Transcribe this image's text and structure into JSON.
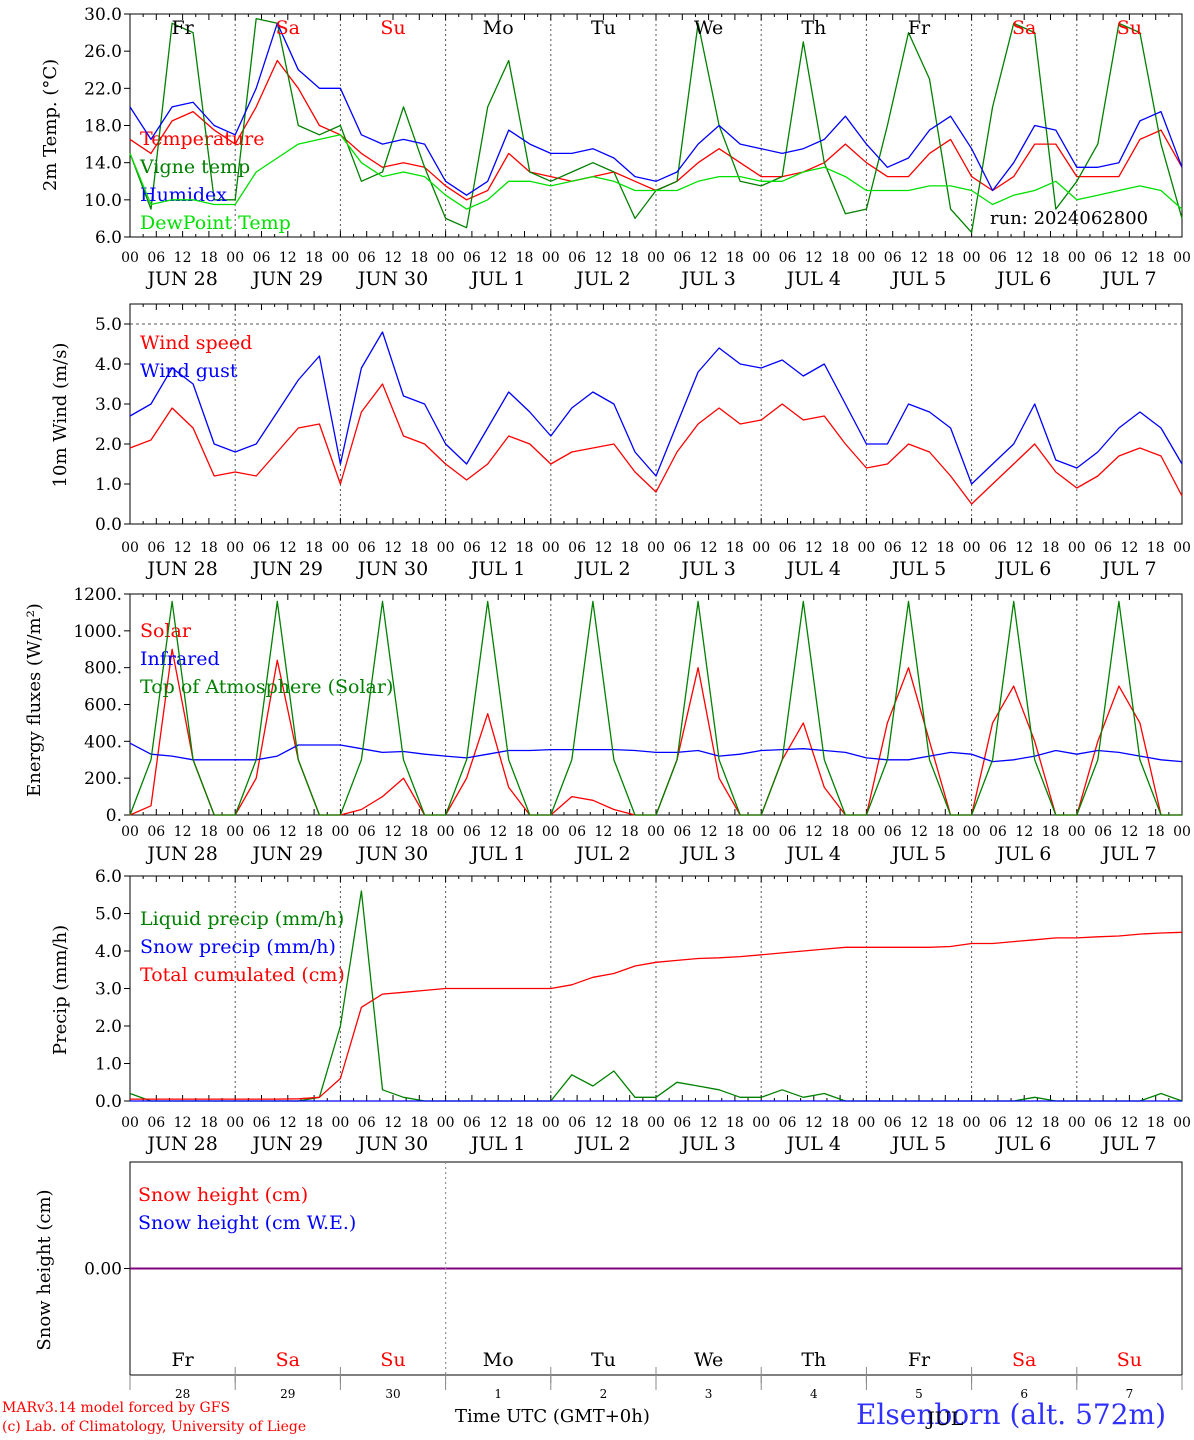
{
  "station": "Elsenborn (alt. 572m)",
  "run": "run: 2024062800",
  "credits": [
    "MARv3.14 model forced by GFS",
    "(c) Lab. of Climatology, University of Liege"
  ],
  "x_axis_title": "Time UTC (GMT+0h)",
  "hour_ticks": [
    "00",
    "06",
    "12",
    "18"
  ],
  "final_hour_tick": "00",
  "date_labels": [
    "JUN 28",
    "JUN 29",
    "JUN 30",
    "JUL  1",
    "JUL  2",
    "JUL  3",
    "JUL  4",
    "JUL  5",
    "JUL  6",
    "JUL  7"
  ],
  "weekdays": [
    {
      "d": "Fr",
      "c": "#000000"
    },
    {
      "d": "Sa",
      "c": "#ff0000"
    },
    {
      "d": "Su",
      "c": "#ff0000"
    },
    {
      "d": "Mo",
      "c": "#000000"
    },
    {
      "d": "Tu",
      "c": "#000000"
    },
    {
      "d": "We",
      "c": "#000000"
    },
    {
      "d": "Th",
      "c": "#000000"
    },
    {
      "d": "Fr",
      "c": "#000000"
    },
    {
      "d": "Sa",
      "c": "#ff0000"
    },
    {
      "d": "Su",
      "c": "#ff0000"
    }
  ],
  "bottom_day_numbers": [
    "28",
    "29",
    "30",
    "1",
    "2",
    "3",
    "4",
    "5",
    "6",
    "7"
  ],
  "bottom_month_label": "JUL",
  "colors": {
    "red": "#ff0000",
    "green": "#008000",
    "blue": "#0000ff",
    "lightgreen": "#00e000",
    "purple": "#800080",
    "frame": "#000000",
    "grid": "#555555"
  },
  "chart_data": [
    {
      "type": "line",
      "ylabel": "2m Temp. (°C)",
      "ylim": [
        6.0,
        30.0
      ],
      "yticks": [
        "6.0",
        "10.0",
        "14.0",
        "18.0",
        "22.0",
        "26.0",
        "30.0"
      ],
      "x_unit": "day index (0 = JUN 28 00 UTC), 6-hourly samples",
      "series": [
        {
          "name": "Temperature",
          "color": "#ff0000",
          "values": [
            16.5,
            15.0,
            18.5,
            19.5,
            17.5,
            16.0,
            20.0,
            25.0,
            22.0,
            18.0,
            17.0,
            15.0,
            13.5,
            14.0,
            13.5,
            11.5,
            10.0,
            11.0,
            15.0,
            13.0,
            12.5,
            12.0,
            12.5,
            13.0,
            12.0,
            11.0,
            12.0,
            14.0,
            15.5,
            14.0,
            12.5,
            12.5,
            13.0,
            14.0,
            16.0,
            14.0,
            12.5,
            12.5,
            15.0,
            16.5,
            12.5,
            11.0,
            12.5,
            16.0,
            16.0,
            12.5,
            12.5,
            12.5,
            16.5,
            17.5,
            13.5
          ]
        },
        {
          "name": "Vigne temp",
          "color": "#008000",
          "values": [
            15.0,
            9.0,
            29.0,
            28.0,
            10.0,
            10.0,
            29.5,
            29.0,
            18.0,
            17.0,
            18.0,
            12.0,
            13.0,
            20.0,
            13.5,
            8.0,
            7.0,
            20.0,
            25.0,
            13.0,
            12.0,
            13.0,
            14.0,
            13.0,
            8.0,
            11.0,
            12.0,
            29.0,
            18.0,
            12.0,
            11.5,
            12.5,
            27.0,
            14.0,
            8.5,
            9.0,
            18.0,
            28.0,
            23.0,
            9.0,
            6.5,
            20.0,
            29.0,
            28.0,
            9.0,
            12.0,
            16.0,
            29.0,
            28.0,
            16.0,
            8.0
          ]
        },
        {
          "name": "Humidex",
          "color": "#0000ff",
          "values": [
            20.0,
            16.5,
            20.0,
            20.5,
            18.0,
            17.0,
            22.0,
            29.0,
            24.0,
            22.0,
            22.0,
            17.0,
            16.0,
            16.5,
            16.0,
            12.0,
            10.5,
            12.0,
            17.5,
            16.0,
            15.0,
            15.0,
            15.5,
            14.5,
            12.5,
            12.0,
            13.0,
            16.0,
            18.0,
            16.0,
            15.5,
            15.0,
            15.5,
            16.5,
            19.0,
            16.0,
            13.5,
            14.5,
            17.5,
            19.0,
            15.5,
            11.0,
            14.0,
            18.0,
            17.5,
            13.5,
            13.5,
            14.0,
            18.5,
            19.5,
            13.5
          ]
        },
        {
          "name": "DewPoint Temp",
          "color": "#00e000",
          "values": [
            15.0,
            9.5,
            10.0,
            10.0,
            9.5,
            9.5,
            13.0,
            14.5,
            16.0,
            16.5,
            17.0,
            14.0,
            12.5,
            13.0,
            12.5,
            10.5,
            9.0,
            10.0,
            12.0,
            12.0,
            11.5,
            12.0,
            12.5,
            12.0,
            11.0,
            11.0,
            11.0,
            12.0,
            12.5,
            12.5,
            12.0,
            12.0,
            13.0,
            13.5,
            12.5,
            11.0,
            11.0,
            11.0,
            11.5,
            11.5,
            11.0,
            9.5,
            10.5,
            11.0,
            12.0,
            10.0,
            10.5,
            11.0,
            11.5,
            11.0,
            9.0
          ]
        }
      ]
    },
    {
      "type": "line",
      "ylabel": "10m Wind (m/s)",
      "ylim": [
        0.0,
        5.5
      ],
      "yticks": [
        "0.0",
        "1.0",
        "2.0",
        "3.0",
        "4.0",
        "5.0"
      ],
      "reference_line": 5.0,
      "series": [
        {
          "name": "Wind speed",
          "color": "#ff0000",
          "values": [
            1.9,
            2.1,
            2.9,
            2.4,
            1.2,
            1.3,
            1.2,
            1.8,
            2.4,
            2.5,
            1.0,
            2.8,
            3.5,
            2.2,
            2.0,
            1.5,
            1.1,
            1.5,
            2.2,
            2.0,
            1.5,
            1.8,
            1.9,
            2.0,
            1.3,
            0.8,
            1.8,
            2.5,
            2.9,
            2.5,
            2.6,
            3.0,
            2.6,
            2.7,
            2.0,
            1.4,
            1.5,
            2.0,
            1.8,
            1.2,
            0.5,
            1.0,
            1.5,
            2.0,
            1.3,
            0.9,
            1.2,
            1.7,
            1.9,
            1.7,
            0.7
          ]
        },
        {
          "name": "Wind gust",
          "color": "#0000ff",
          "values": [
            2.7,
            3.0,
            3.9,
            3.5,
            2.0,
            1.8,
            2.0,
            2.8,
            3.6,
            4.2,
            1.5,
            3.9,
            4.8,
            3.2,
            3.0,
            2.0,
            1.5,
            2.4,
            3.3,
            2.8,
            2.2,
            2.9,
            3.3,
            3.0,
            1.8,
            1.2,
            2.5,
            3.8,
            4.4,
            4.0,
            3.9,
            4.1,
            3.7,
            4.0,
            3.0,
            2.0,
            2.0,
            3.0,
            2.8,
            2.4,
            1.0,
            1.5,
            2.0,
            3.0,
            1.6,
            1.4,
            1.8,
            2.4,
            2.8,
            2.4,
            1.5
          ]
        }
      ]
    },
    {
      "type": "line",
      "ylabel": "Energy fluxes (W/m²)",
      "ylim": [
        0,
        1200
      ],
      "yticks": [
        "0.",
        "200.",
        "400.",
        "600.",
        "800.",
        "1000.",
        "1200."
      ],
      "series": [
        {
          "name": "Solar",
          "color": "#ff0000",
          "values": [
            0,
            50,
            900,
            300,
            0,
            0,
            200,
            840,
            300,
            0,
            0,
            30,
            100,
            200,
            0,
            0,
            200,
            550,
            150,
            0,
            0,
            100,
            80,
            30,
            0,
            0,
            300,
            800,
            200,
            0,
            0,
            300,
            500,
            150,
            0,
            0,
            500,
            800,
            400,
            0,
            0,
            500,
            700,
            400,
            0,
            0,
            400,
            700,
            500,
            0,
            0
          ]
        },
        {
          "name": "Infrared",
          "color": "#0000ff",
          "values": [
            390,
            330,
            320,
            300,
            300,
            300,
            300,
            320,
            380,
            380,
            380,
            360,
            340,
            345,
            330,
            320,
            310,
            330,
            350,
            350,
            355,
            355,
            355,
            355,
            350,
            340,
            340,
            350,
            320,
            330,
            350,
            355,
            360,
            350,
            340,
            310,
            300,
            300,
            320,
            340,
            330,
            290,
            300,
            320,
            350,
            330,
            350,
            340,
            320,
            300,
            290
          ]
        },
        {
          "name": "Top of Atmosphere (Solar)",
          "color": "#008000",
          "values": [
            0,
            300,
            1160,
            300,
            0,
            0,
            300,
            1160,
            300,
            0,
            0,
            300,
            1160,
            300,
            0,
            0,
            300,
            1160,
            300,
            0,
            0,
            300,
            1160,
            300,
            0,
            0,
            300,
            1160,
            300,
            0,
            0,
            300,
            1160,
            300,
            0,
            0,
            300,
            1160,
            300,
            0,
            0,
            300,
            1160,
            300,
            0,
            0,
            300,
            1160,
            300,
            0,
            0
          ]
        }
      ]
    },
    {
      "type": "line",
      "ylabel": "Precip (mm/h)",
      "ylim": [
        0.0,
        6.0
      ],
      "yticks": [
        "0.0",
        "1.0",
        "2.0",
        "3.0",
        "4.0",
        "5.0",
        "6.0"
      ],
      "series": [
        {
          "name": "Liquid precip (mm/h)",
          "color": "#008000",
          "values": [
            0.2,
            0,
            0,
            0,
            0,
            0,
            0,
            0,
            0,
            0.1,
            2.0,
            5.6,
            0.3,
            0.1,
            0,
            0,
            0,
            0,
            0,
            0,
            0,
            0.7,
            0.4,
            0.8,
            0.1,
            0.1,
            0.5,
            0.4,
            0.3,
            0.1,
            0.1,
            0.3,
            0.1,
            0.2,
            0,
            0,
            0,
            0,
            0,
            0,
            0,
            0,
            0,
            0.1,
            0,
            0,
            0,
            0,
            0,
            0.2,
            0
          ]
        },
        {
          "name": "Snow precip (mm/h)",
          "color": "#0000ff",
          "values": [
            0,
            0,
            0,
            0,
            0,
            0,
            0,
            0,
            0,
            0,
            0,
            0,
            0,
            0,
            0,
            0,
            0,
            0,
            0,
            0,
            0,
            0,
            0,
            0,
            0,
            0,
            0,
            0,
            0,
            0,
            0,
            0,
            0,
            0,
            0,
            0,
            0,
            0,
            0,
            0,
            0,
            0,
            0,
            0,
            0,
            0,
            0,
            0,
            0,
            0,
            0
          ]
        },
        {
          "name": "Total cumulated (cm)",
          "color": "#ff0000",
          "values": [
            0.05,
            0.05,
            0.05,
            0.05,
            0.05,
            0.05,
            0.05,
            0.05,
            0.06,
            0.1,
            0.6,
            2.5,
            2.85,
            2.9,
            2.95,
            3.0,
            3.0,
            3.0,
            3.0,
            3.0,
            3.0,
            3.1,
            3.3,
            3.4,
            3.6,
            3.7,
            3.75,
            3.8,
            3.82,
            3.85,
            3.9,
            3.95,
            4.0,
            4.05,
            4.1,
            4.1,
            4.1,
            4.1,
            4.1,
            4.12,
            4.2,
            4.2,
            4.25,
            4.3,
            4.35,
            4.35,
            4.38,
            4.4,
            4.45,
            4.48,
            4.5
          ]
        }
      ]
    },
    {
      "type": "line",
      "ylabel": "Snow height (cm)",
      "ylim": [
        -1.0,
        1.0
      ],
      "yticks": [
        "0.00"
      ],
      "series": [
        {
          "name": "Snow height (cm)",
          "color": "#ff0000",
          "values": [
            0,
            0
          ]
        },
        {
          "name": "Snow height (cm W.E.)",
          "color": "#0000ff",
          "values": [
            0,
            0
          ]
        }
      ]
    }
  ]
}
